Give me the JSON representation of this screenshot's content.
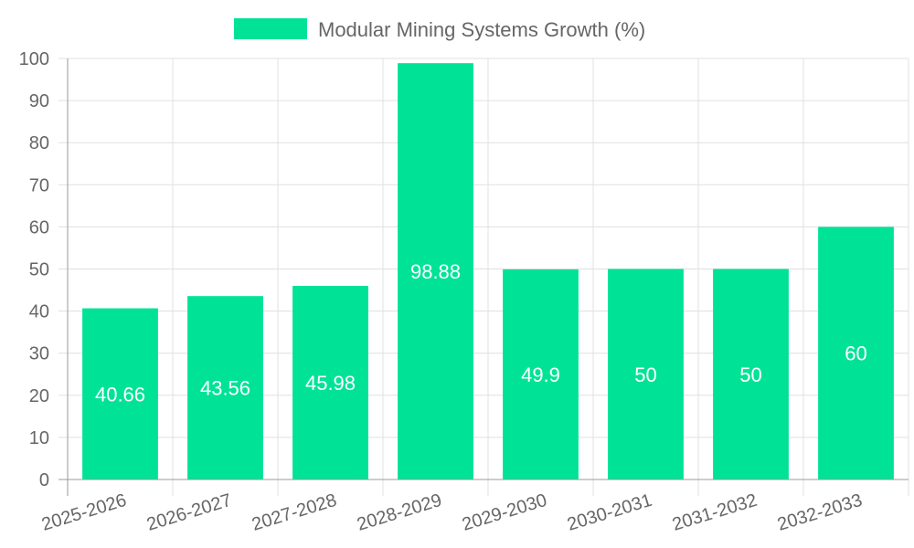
{
  "chart_data": {
    "type": "bar",
    "title": "",
    "xlabel": "",
    "ylabel": "",
    "categories": [
      "2025-2026",
      "2026-2027",
      "2027-2028",
      "2028-2029",
      "2029-2030",
      "2030-2031",
      "2031-2032",
      "2032-2033"
    ],
    "series": [
      {
        "name": "Modular Mining Systems Growth (%)",
        "values": [
          40.66,
          43.56,
          45.98,
          98.88,
          49.9,
          50,
          50,
          60
        ],
        "data_labels": [
          "40.66",
          "43.56",
          "45.98",
          "98.88",
          "49.9",
          "50",
          "50",
          "60"
        ],
        "color": "#00e396"
      }
    ],
    "ylim": [
      0,
      100
    ],
    "y_ticks": [
      0,
      10,
      20,
      30,
      40,
      50,
      60,
      70,
      80,
      90,
      100
    ],
    "y_tick_labels": [
      "0",
      "10",
      "20",
      "30",
      "40",
      "50",
      "60",
      "70",
      "80",
      "90",
      "100"
    ],
    "grid": true,
    "legend_position": "top-center"
  },
  "colors": {
    "grid": "#e0e0e0",
    "axis": "#999999",
    "tick_text": "#666666",
    "data_label_text": "#ffffff"
  }
}
